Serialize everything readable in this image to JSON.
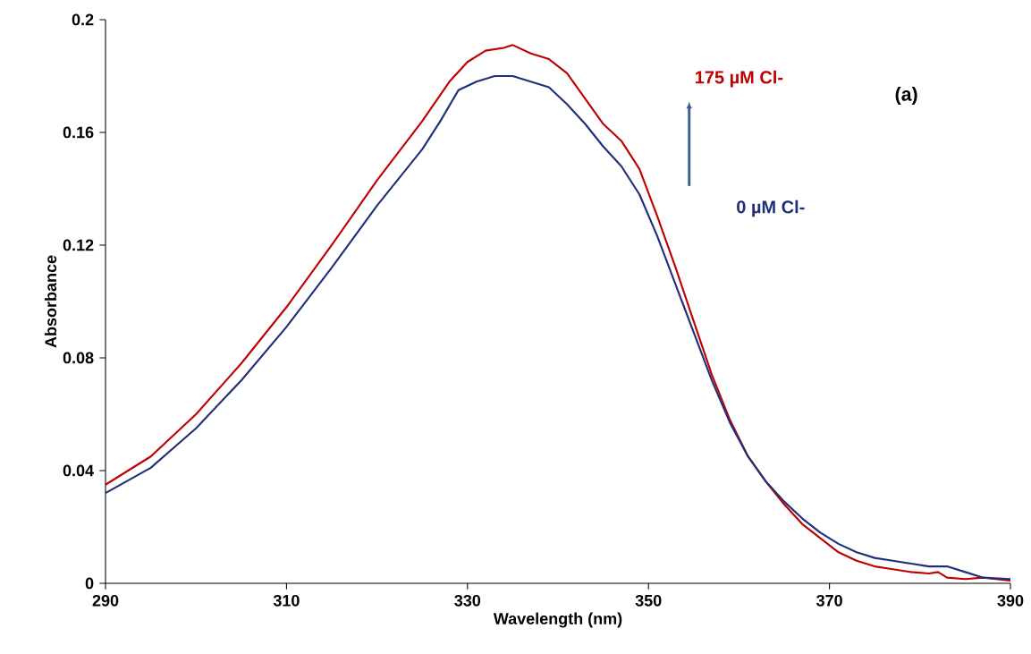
{
  "chart_data": {
    "type": "line",
    "xlabel": "Wavelength (nm)",
    "ylabel": "Absorbance",
    "xlim": [
      290,
      390
    ],
    "xticks": [
      290,
      310,
      330,
      350,
      370,
      390
    ],
    "ylim": [
      0,
      0.2
    ],
    "yticks": [
      0,
      0.04,
      0.08,
      0.12,
      0.16,
      0.2
    ],
    "grid": false,
    "legend": false,
    "marker": "none",
    "line_style": "solid",
    "annotations": [
      "(a)"
    ],
    "series": [
      {
        "name": "175 µM Cl-",
        "color": "#c00000",
        "x": [
          290,
          295,
          300,
          305,
          310,
          315,
          320,
          325,
          328,
          330,
          332,
          334,
          335,
          337,
          339,
          341,
          343,
          345,
          347,
          349,
          351,
          353,
          355,
          357,
          359,
          361,
          363,
          365,
          367,
          369,
          371,
          373,
          375,
          377,
          379,
          381,
          382,
          383,
          385,
          387,
          390
        ],
        "values": [
          0.035,
          0.045,
          0.06,
          0.078,
          0.098,
          0.12,
          0.143,
          0.164,
          0.178,
          0.185,
          0.189,
          0.19,
          0.191,
          0.188,
          0.186,
          0.181,
          0.172,
          0.163,
          0.157,
          0.147,
          0.13,
          0.112,
          0.093,
          0.074,
          0.058,
          0.045,
          0.036,
          0.028,
          0.021,
          0.016,
          0.011,
          0.008,
          0.006,
          0.005,
          0.004,
          0.0035,
          0.004,
          0.002,
          0.0015,
          0.002,
          0.001
        ]
      },
      {
        "name": "0 µM Cl-",
        "color": "#1f2f7a",
        "x": [
          290,
          295,
          300,
          305,
          310,
          315,
          320,
          325,
          327,
          329,
          331,
          333,
          335,
          337,
          339,
          341,
          343,
          345,
          347,
          349,
          351,
          353,
          355,
          357,
          359,
          361,
          363,
          365,
          367,
          369,
          371,
          373,
          375,
          377,
          379,
          381,
          383,
          385,
          387,
          390
        ],
        "values": [
          0.032,
          0.041,
          0.055,
          0.072,
          0.091,
          0.112,
          0.134,
          0.154,
          0.164,
          0.175,
          0.178,
          0.18,
          0.18,
          0.178,
          0.176,
          0.17,
          0.163,
          0.155,
          0.148,
          0.138,
          0.123,
          0.106,
          0.089,
          0.072,
          0.057,
          0.045,
          0.036,
          0.029,
          0.023,
          0.018,
          0.014,
          0.011,
          0.009,
          0.008,
          0.007,
          0.006,
          0.006,
          0.004,
          0.002,
          0.0015
        ]
      }
    ]
  }
}
